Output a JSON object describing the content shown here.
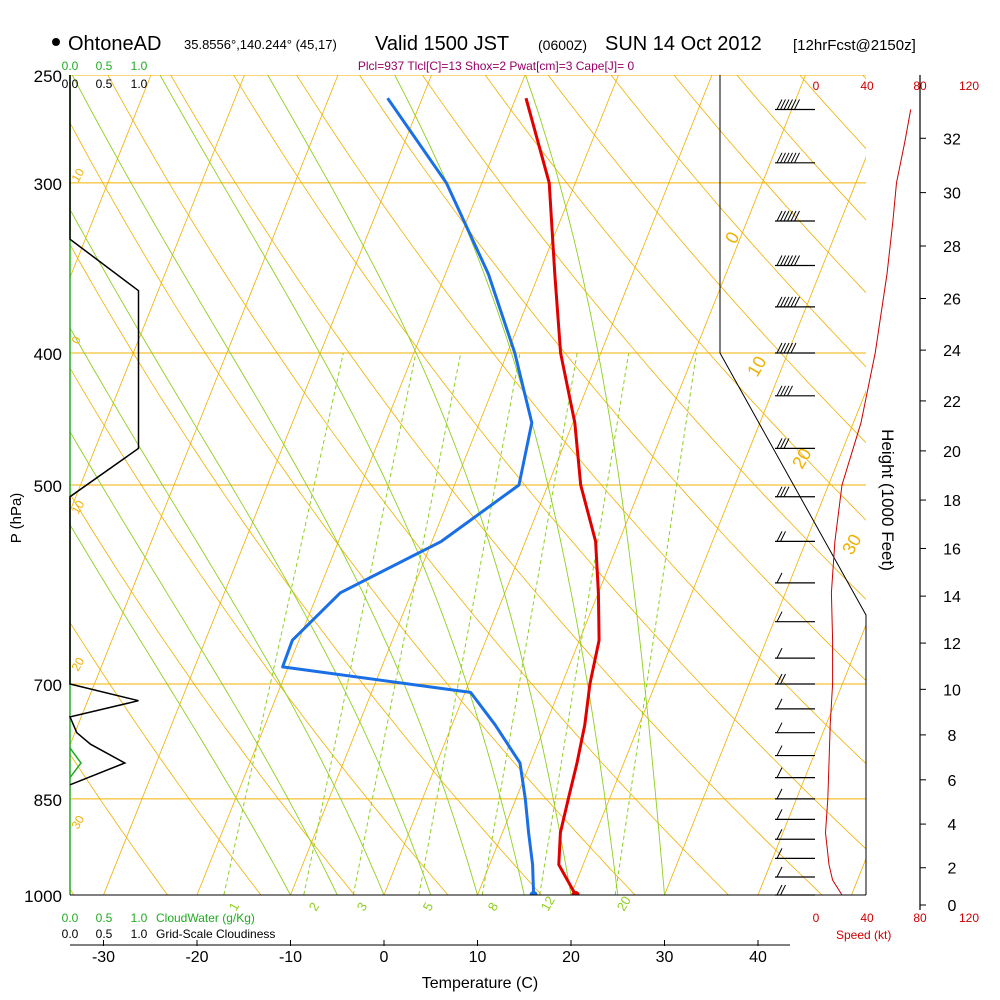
{
  "header": {
    "station": "OhtoneAD",
    "coords": "35.8556°,140.244° (45,17)",
    "valid": "Valid 1500 JST",
    "zulu": "(0600Z)",
    "date": "SUN 14 Oct 2012",
    "forecast": "[12hrFcst@2150z]",
    "indices": "Plcl=937 Tlcl[C]=13 Shox=2 Pwat[cm]=3 Cape[J]= 0"
  },
  "colors": {
    "temp": "#e00000",
    "dew": "#1a6fe6",
    "isotherm": "#f0b000",
    "mixing": "#8fcf20",
    "cloudwater": "#22aa22",
    "wind_speed": "#cc0000"
  },
  "chart_data": {
    "type": "line",
    "title": "Valid 1500 JST (0600Z) SUN 14 Oct 2012",
    "xlabel": "Temperature (C)",
    "ylabel": "P (hPa)",
    "y2label": "Height (1000 Feet)",
    "x_ticks": [
      -30,
      -20,
      -10,
      0,
      10,
      20,
      30,
      40
    ],
    "p_ticks": [
      250,
      300,
      400,
      500,
      700,
      850,
      1000
    ],
    "height_ticks": [
      0,
      2,
      4,
      6,
      8,
      10,
      12,
      14,
      16,
      18,
      20,
      22,
      24,
      26,
      28,
      30,
      32
    ],
    "isotherm_labels": [
      "10",
      "0",
      "10",
      "20",
      "30",
      "0",
      "10",
      "20",
      "30"
    ],
    "mixing_ratio_labels": [
      "1",
      "2",
      "3",
      "5",
      "8",
      "12",
      "20"
    ],
    "series": [
      {
        "name": "Temperature",
        "points": [
          [
            20.5,
            1000
          ],
          [
            17.4,
            950
          ],
          [
            16.2,
            900
          ],
          [
            15.6,
            850
          ],
          [
            15.0,
            800
          ],
          [
            14.2,
            750
          ],
          [
            13.0,
            700
          ],
          [
            12.1,
            650
          ],
          [
            10.0,
            600
          ],
          [
            7.5,
            550
          ],
          [
            3.5,
            500
          ],
          [
            0.2,
            450
          ],
          [
            -4.3,
            400
          ],
          [
            -8.3,
            350
          ],
          [
            -12.8,
            300
          ],
          [
            -18.9,
            260
          ]
        ]
      },
      {
        "name": "Dew point",
        "points": [
          [
            16.0,
            1000
          ],
          [
            14.6,
            950
          ],
          [
            12.8,
            900
          ],
          [
            11.0,
            850
          ],
          [
            8.9,
            800
          ],
          [
            4.6,
            750
          ],
          [
            0.6,
            710
          ],
          [
            -20.6,
            680
          ],
          [
            -20.7,
            650
          ],
          [
            -17.6,
            600
          ],
          [
            -9.0,
            550
          ],
          [
            -3.1,
            500
          ],
          [
            -4.4,
            450
          ],
          [
            -9.2,
            400
          ],
          [
            -15.4,
            350
          ],
          [
            -23.8,
            300
          ],
          [
            -33.7,
            260
          ]
        ]
      }
    ],
    "cloudiness_labels": [
      "0.0",
      "0.5",
      "1.0"
    ],
    "cloudwater_labels": [
      "0.0",
      "0.5",
      "1.0"
    ],
    "cloudwater_caption": "CloudWater (g/Kg)",
    "cloudiness_caption": "Grid-Scale Cloudiness",
    "cloudiness_profile": [
      [
        0.0,
        250
      ],
      [
        0.0,
        330
      ],
      [
        0.5,
        360
      ],
      [
        0.5,
        470
      ],
      [
        0.0,
        510
      ],
      [
        0.0,
        700
      ],
      [
        0.5,
        720
      ],
      [
        0.0,
        740
      ],
      [
        0.05,
        760
      ],
      [
        0.15,
        775
      ],
      [
        0.4,
        800
      ],
      [
        0.0,
        830
      ]
    ],
    "cloudwater_profile": [
      [
        0.0,
        780
      ],
      [
        0.08,
        800
      ],
      [
        0.0,
        820
      ]
    ],
    "wind_speed_ticks": [
      "0",
      "40",
      "80",
      "120"
    ],
    "wind_speed_label": "Speed (kt)",
    "wind_speed_profile": [
      [
        22,
        1000
      ],
      [
        14,
        975
      ],
      [
        11,
        950
      ],
      [
        8,
        900
      ],
      [
        10,
        850
      ],
      [
        11,
        800
      ],
      [
        12,
        750
      ],
      [
        14,
        700
      ],
      [
        14,
        650
      ],
      [
        13,
        600
      ],
      [
        16,
        550
      ],
      [
        22,
        500
      ],
      [
        38,
        450
      ],
      [
        50,
        400
      ],
      [
        60,
        350
      ],
      [
        65,
        320
      ],
      [
        68,
        300
      ],
      [
        75,
        280
      ],
      [
        80,
        265
      ]
    ],
    "wind_barbs": [
      {
        "p": 265,
        "speed": 80
      },
      {
        "p": 290,
        "speed": 75
      },
      {
        "p": 320,
        "speed": 70
      },
      {
        "p": 345,
        "speed": 60
      },
      {
        "p": 370,
        "speed": 55
      },
      {
        "p": 400,
        "speed": 50
      },
      {
        "p": 430,
        "speed": 40
      },
      {
        "p": 470,
        "speed": 30
      },
      {
        "p": 510,
        "speed": 25
      },
      {
        "p": 550,
        "speed": 15
      },
      {
        "p": 590,
        "speed": 10
      },
      {
        "p": 630,
        "speed": 10
      },
      {
        "p": 670,
        "speed": 10
      },
      {
        "p": 700,
        "speed": 15
      },
      {
        "p": 730,
        "speed": 12
      },
      {
        "p": 760,
        "speed": 12
      },
      {
        "p": 790,
        "speed": 12
      },
      {
        "p": 820,
        "speed": 10
      },
      {
        "p": 850,
        "speed": 10
      },
      {
        "p": 880,
        "speed": 8
      },
      {
        "p": 910,
        "speed": 8
      },
      {
        "p": 940,
        "speed": 10
      },
      {
        "p": 970,
        "speed": 12
      },
      {
        "p": 1000,
        "speed": 15
      }
    ]
  }
}
